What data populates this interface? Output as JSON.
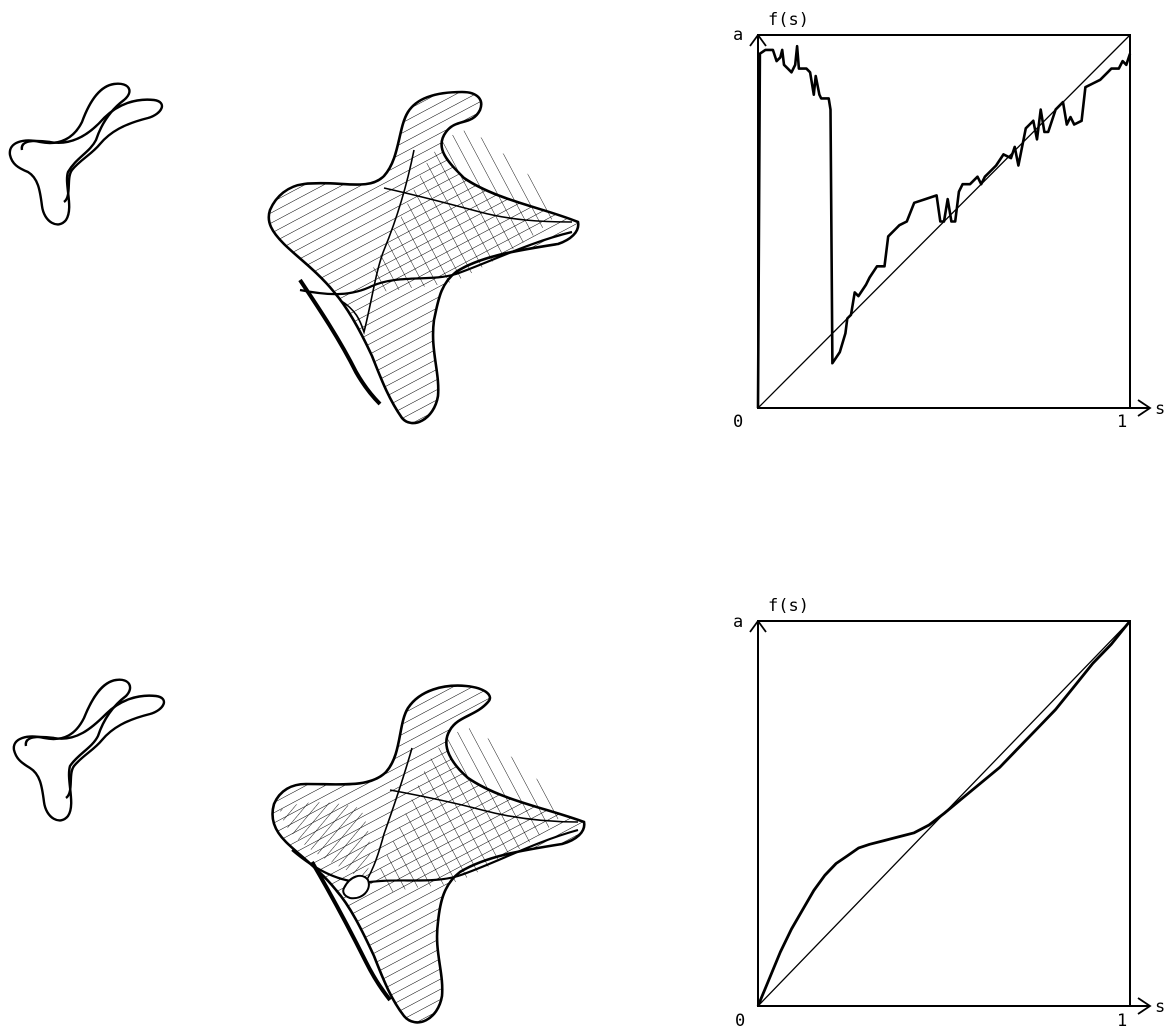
{
  "chart_data": [
    {
      "type": "line",
      "title": "",
      "xlabel": "s",
      "ylabel": "f(s)",
      "x_ticks": [
        "0",
        "1"
      ],
      "y_ticks": [
        "a"
      ],
      "xlim": [
        0,
        1
      ],
      "ylim": [
        0,
        1
      ],
      "grid": false,
      "series": [
        {
          "x": [
            0,
            0.005,
            0.02,
            0.04,
            0.05,
            0.06,
            0.065,
            0.07,
            0.08,
            0.09,
            0.1,
            0.105,
            0.11,
            0.13,
            0.14,
            0.15,
            0.155,
            0.165,
            0.17,
            0.18,
            0.19,
            0.195,
            0.2,
            0.22,
            0.235,
            0.24,
            0.25,
            0.26,
            0.27,
            0.29,
            0.3,
            0.32,
            0.34,
            0.35,
            0.37,
            0.38,
            0.4,
            0.42,
            0.45,
            0.48,
            0.49,
            0.5,
            0.51,
            0.52,
            0.53,
            0.54,
            0.55,
            0.57,
            0.59,
            0.6,
            0.61,
            0.62,
            0.64,
            0.66,
            0.68,
            0.69,
            0.7,
            0.72,
            0.73,
            0.74,
            0.75,
            0.76,
            0.77,
            0.78,
            0.8,
            0.82,
            0.83,
            0.84,
            0.85,
            0.87,
            0.88,
            0.9,
            0.92,
            0.94,
            0.95,
            0.97,
            0.98,
            0.99,
            1.0
          ],
          "y": [
            0,
            0.95,
            0.96,
            0.96,
            0.93,
            0.94,
            0.96,
            0.92,
            0.91,
            0.9,
            0.92,
            0.97,
            0.91,
            0.91,
            0.9,
            0.84,
            0.89,
            0.84,
            0.83,
            0.83,
            0.83,
            0.8,
            0.12,
            0.15,
            0.2,
            0.24,
            0.25,
            0.31,
            0.3,
            0.33,
            0.35,
            0.38,
            0.38,
            0.46,
            0.48,
            0.49,
            0.5,
            0.55,
            0.56,
            0.57,
            0.5,
            0.5,
            0.56,
            0.5,
            0.5,
            0.58,
            0.6,
            0.6,
            0.62,
            0.6,
            0.62,
            0.63,
            0.65,
            0.68,
            0.67,
            0.7,
            0.65,
            0.75,
            0.76,
            0.77,
            0.72,
            0.8,
            0.74,
            0.74,
            0.8,
            0.82,
            0.76,
            0.78,
            0.76,
            0.77,
            0.86,
            0.87,
            0.88,
            0.9,
            0.91,
            0.91,
            0.93,
            0.92,
            0.95
          ]
        },
        {
          "x": [
            0,
            1
          ],
          "y": [
            0,
            1
          ]
        }
      ]
    },
    {
      "type": "line",
      "title": "",
      "xlabel": "s",
      "ylabel": "f(s)",
      "x_ticks": [
        "0",
        "1"
      ],
      "y_ticks": [
        "a"
      ],
      "xlim": [
        0,
        1
      ],
      "ylim": [
        0,
        1
      ],
      "grid": false,
      "series": [
        {
          "x": [
            0,
            0.03,
            0.06,
            0.09,
            0.12,
            0.15,
            0.18,
            0.21,
            0.24,
            0.27,
            0.3,
            0.34,
            0.38,
            0.42,
            0.46,
            0.5,
            0.55,
            0.6,
            0.65,
            0.7,
            0.75,
            0.8,
            0.85,
            0.9,
            0.95,
            1.0
          ],
          "y": [
            0,
            0.07,
            0.14,
            0.2,
            0.25,
            0.3,
            0.34,
            0.37,
            0.39,
            0.41,
            0.42,
            0.43,
            0.44,
            0.45,
            0.47,
            0.5,
            0.54,
            0.58,
            0.62,
            0.67,
            0.72,
            0.77,
            0.83,
            0.89,
            0.94,
            1.0
          ]
        },
        {
          "x": [
            0,
            1
          ],
          "y": [
            0,
            1
          ]
        }
      ]
    }
  ]
}
